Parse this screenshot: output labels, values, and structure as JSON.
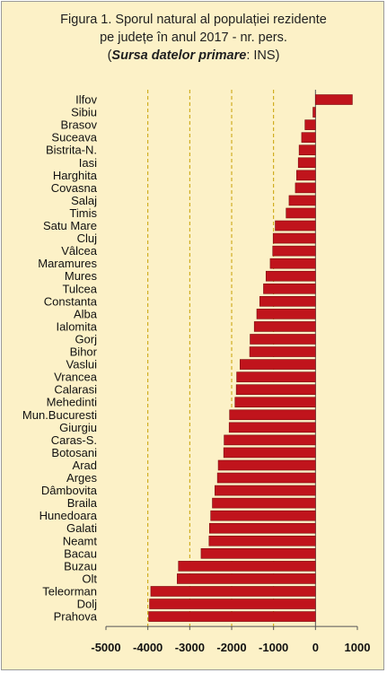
{
  "title": {
    "line1": "Figura 1. Sporul natural al populației rezidente",
    "line2": "pe județe în anul 2017 - nr. pers.",
    "source_label": "Sursa datelor primare",
    "source_value": ": INS"
  },
  "colors": {
    "bar": "#C0141C",
    "bar_edge": "#7a0a0f",
    "background": "#FCF1C7",
    "grid": "#C8A000"
  },
  "chart_data": {
    "type": "bar",
    "orientation": "horizontal",
    "title": "Figura 1. Sporul natural al populației rezidente pe județe în anul 2017 - nr. pers.",
    "subtitle": "(Sursa datelor primare: INS)",
    "xlabel": "",
    "ylabel": "",
    "xlim": [
      -5000,
      1000
    ],
    "xticks": [
      -5000,
      -4000,
      -3000,
      -2000,
      -1000,
      0,
      1000
    ],
    "xtick_labels": [
      "-5000",
      "-4000",
      "-3000",
      "-2000",
      "-1000",
      "0",
      "1000"
    ],
    "gridlines_at": [
      -4000,
      -3000,
      -2000,
      -1000
    ],
    "categories": [
      "Ilfov",
      "Sibiu",
      "Brasov",
      "Suceava",
      "Bistrita-N.",
      "Iasi",
      "Harghita",
      "Covasna",
      "Salaj",
      "Timis",
      "Satu Mare",
      "Cluj",
      "Vâlcea",
      "Maramures",
      "Mures",
      "Tulcea",
      "Constanta",
      "Alba",
      "Ialomita",
      "Gorj",
      "Bihor",
      "Vaslui",
      "Vrancea",
      "Calarasi",
      "Mehedinti",
      "Mun.Bucuresti",
      "Giurgiu",
      "Caras-S.",
      "Botosani",
      "Arad",
      "Arges",
      "Dâmbovita",
      "Braila",
      "Hunedoara",
      "Galati",
      "Neamt",
      "Bacau",
      "Buzau",
      "Olt",
      "Teleorman",
      "Dolj",
      "Prahova"
    ],
    "values": [
      880,
      -60,
      -250,
      -330,
      -390,
      -410,
      -450,
      -480,
      -630,
      -700,
      -960,
      -1010,
      -1020,
      -1080,
      -1180,
      -1240,
      -1330,
      -1400,
      -1460,
      -1560,
      -1570,
      -1800,
      -1880,
      -1890,
      -1920,
      -2050,
      -2060,
      -2180,
      -2190,
      -2320,
      -2340,
      -2400,
      -2460,
      -2500,
      -2530,
      -2540,
      -2730,
      -3270,
      -3300,
      -3930,
      -3960,
      -3980
    ]
  }
}
